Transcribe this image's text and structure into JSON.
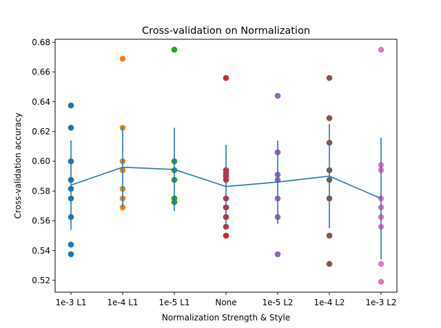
{
  "chart_data": {
    "type": "scatter",
    "title": "Cross-validation on Normalization",
    "xlabel": "Normalization Strength & Style",
    "ylabel": "Cross-validation accuracy",
    "ylim": [
      0.512,
      0.682
    ],
    "yticks": [
      "0.52",
      "0.54",
      "0.56",
      "0.58",
      "0.60",
      "0.62",
      "0.64",
      "0.66",
      "0.68"
    ],
    "grid": false,
    "categories": [
      "1e-3 L1",
      "1e-4 L1",
      "1e-5 L1",
      "None",
      "1e-5 L2",
      "1e-4 L2",
      "1e-3 L2"
    ],
    "colors": [
      "#1f77b4",
      "#ff7f0e",
      "#2ca02c",
      "#d62728",
      "#9467bd",
      "#8c564b",
      "#e377c2"
    ],
    "line_color": "#1f77b4",
    "points": [
      [
        0.6375,
        0.6225,
        0.6,
        0.5875,
        0.5875,
        0.5815,
        0.575,
        0.5625,
        0.544,
        0.5375
      ],
      [
        0.669,
        0.6225,
        0.6,
        0.594,
        0.594,
        0.5815,
        0.575,
        0.569
      ],
      [
        0.675,
        0.6,
        0.594,
        0.5875,
        0.5875,
        0.575,
        0.575,
        0.5725
      ],
      [
        0.656,
        0.594,
        0.592,
        0.59,
        0.5875,
        0.575,
        0.569,
        0.5625,
        0.556,
        0.55
      ],
      [
        0.644,
        0.606,
        0.591,
        0.5875,
        0.575,
        0.5625,
        0.5375
      ],
      [
        0.656,
        0.629,
        0.6125,
        0.594,
        0.5875,
        0.575,
        0.55,
        0.531
      ],
      [
        0.675,
        0.5975,
        0.594,
        0.575,
        0.569,
        0.5625,
        0.556,
        0.531,
        0.519
      ]
    ],
    "mean": [
      0.584,
      0.596,
      0.5945,
      0.583,
      0.586,
      0.59,
      0.575
    ],
    "error": [
      0.03,
      0.027,
      0.028,
      0.028,
      0.028,
      0.035,
      0.041
    ]
  }
}
